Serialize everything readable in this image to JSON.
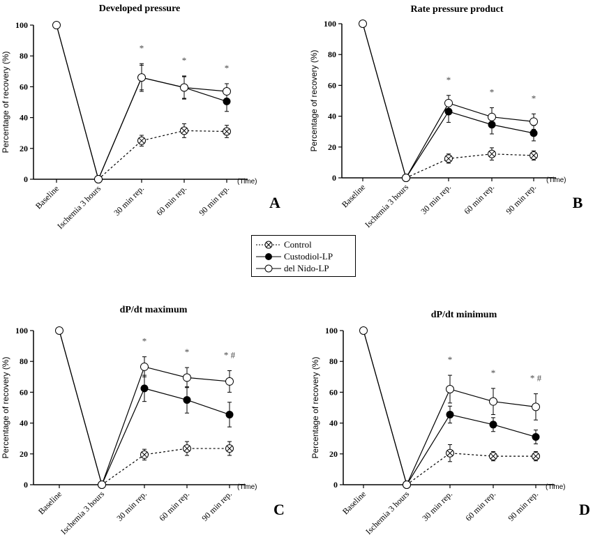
{
  "legend": [
    {
      "name": "Control",
      "marker": "crossed-circle",
      "line": "dashed"
    },
    {
      "name": "Custodiol-LP",
      "marker": "filled-circle",
      "line": "solid"
    },
    {
      "name": "del Nido-LP",
      "marker": "open-circle",
      "line": "solid"
    }
  ],
  "chart_data": [
    {
      "type": "line",
      "panel_letter": "A",
      "title": "Developed pressure",
      "ylabel": "Percentage of recovery (%)",
      "xlabel": "(Time)",
      "categories": [
        "Baseline",
        "Ischemia 3 hours",
        "30 min rep.",
        "60 min rep.",
        "90 min rep."
      ],
      "ylim": [
        0,
        100
      ],
      "yticks": [
        "0",
        "20",
        "40",
        "60",
        "80",
        "100"
      ],
      "annotations": [
        "",
        "",
        "*",
        "*",
        "*"
      ],
      "series": [
        {
          "name": "Control",
          "values": [
            null,
            0,
            25,
            31.5,
            31
          ],
          "errors": [
            null,
            0,
            3.5,
            4.5,
            4
          ]
        },
        {
          "name": "Custodiol-LP",
          "values": [
            100,
            0,
            66,
            59.5,
            50.5
          ],
          "errors": [
            0,
            0,
            8,
            7,
            6.5
          ]
        },
        {
          "name": "del Nido-LP",
          "values": [
            100,
            0,
            66,
            59.5,
            57
          ],
          "errors": [
            0,
            0,
            9,
            7.5,
            5
          ]
        }
      ]
    },
    {
      "type": "line",
      "panel_letter": "B",
      "title": "Rate pressure product",
      "ylabel": "Percentage of recovery (%)",
      "xlabel": "(Time)",
      "categories": [
        "Baseline",
        "Ischemia 3 hours",
        "30 min rep.",
        "60 min rep.",
        "90 min rep."
      ],
      "ylim": [
        0,
        100
      ],
      "yticks": [
        "0",
        "20",
        "40",
        "60",
        "80",
        "100"
      ],
      "annotations": [
        "",
        "",
        "*",
        "*",
        "*"
      ],
      "series": [
        {
          "name": "Control",
          "values": [
            null,
            0,
            12.5,
            15.5,
            14.5
          ],
          "errors": [
            null,
            0,
            3,
            4,
            3
          ]
        },
        {
          "name": "Custodiol-LP",
          "values": [
            100,
            0,
            43,
            34.5,
            29
          ],
          "errors": [
            0,
            0,
            7,
            6,
            5
          ]
        },
        {
          "name": "del Nido-LP",
          "values": [
            100,
            0,
            48.5,
            39.5,
            36.5
          ],
          "errors": [
            0,
            0,
            5,
            6,
            5
          ]
        }
      ]
    },
    {
      "type": "line",
      "panel_letter": "C",
      "title": "dP/dt maximum",
      "ylabel": "Percentage of recovery (%)",
      "xlabel": "(Time)",
      "categories": [
        "Baseline",
        "Ischemia 3 hours",
        "30 min rep.",
        "60 min rep.",
        "90 min rep."
      ],
      "ylim": [
        0,
        100
      ],
      "yticks": [
        "0",
        "20",
        "40",
        "60",
        "80",
        "100"
      ],
      "annotations": [
        "",
        "",
        "*",
        "*",
        "* #"
      ],
      "series": [
        {
          "name": "Control",
          "values": [
            null,
            0,
            19.5,
            23.5,
            23.5
          ],
          "errors": [
            null,
            0,
            3.5,
            4.5,
            4.5
          ]
        },
        {
          "name": "Custodiol-LP",
          "values": [
            100,
            0,
            62.5,
            55,
            45.5
          ],
          "errors": [
            0,
            0,
            8.5,
            8.5,
            8
          ]
        },
        {
          "name": "del Nido-LP",
          "values": [
            100,
            0,
            76.5,
            69.5,
            67
          ],
          "errors": [
            0,
            0,
            6.5,
            6.5,
            7
          ]
        }
      ]
    },
    {
      "type": "line",
      "panel_letter": "D",
      "title": "dP/dt minimum",
      "ylabel": "Percentage of recovery (%)",
      "xlabel": "(Time)",
      "categories": [
        "Baseline",
        "Ischemia 3 hours",
        "30 min rep.",
        "60 min rep.",
        "90 min rep."
      ],
      "ylim": [
        0,
        100
      ],
      "yticks": [
        "0",
        "20",
        "40",
        "60",
        "80",
        "100"
      ],
      "annotations": [
        "",
        "",
        "*",
        "*",
        "* #"
      ],
      "series": [
        {
          "name": "Control",
          "values": [
            null,
            0,
            20.5,
            18.5,
            18.5
          ],
          "errors": [
            null,
            0,
            5.5,
            3,
            3
          ]
        },
        {
          "name": "Custodiol-LP",
          "values": [
            100,
            0,
            45.5,
            39,
            31
          ],
          "errors": [
            0,
            0,
            5.5,
            4.5,
            4.5
          ]
        },
        {
          "name": "del Nido-LP",
          "values": [
            100,
            0,
            62,
            54,
            50.5
          ],
          "errors": [
            0,
            0,
            9,
            8.5,
            8.5
          ]
        }
      ]
    }
  ]
}
